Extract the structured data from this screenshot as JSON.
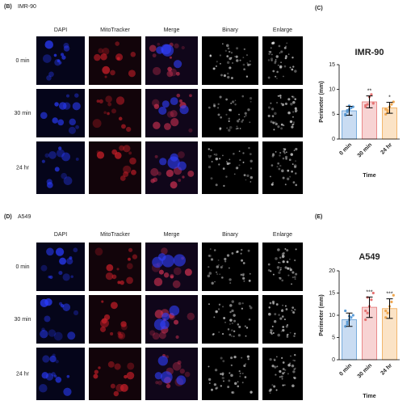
{
  "panels": [
    {
      "label": "(B)",
      "cell_line": "IMR-90",
      "columns": [
        "DAPI",
        "MitoTracker",
        "Merge",
        "Binary",
        "Enlarge"
      ],
      "rows": [
        "0 min",
        "30 min",
        "24 hr"
      ]
    },
    {
      "label": "(D)",
      "cell_line": "A549",
      "columns": [
        "DAPI",
        "MitoTracker",
        "Merge",
        "Binary",
        "Enlarge"
      ],
      "rows": [
        "0 min",
        "30 min",
        "24 hr"
      ]
    }
  ],
  "chart_data": [
    {
      "type": "bar",
      "panel_label": "(C)",
      "title": "IMR-90",
      "x_label": "Time",
      "y_label": "Perimeter (mm)",
      "categories": [
        "0 min",
        "30 min",
        "24 hr"
      ],
      "values": [
        5.7,
        7.5,
        6.3
      ],
      "errors": [
        0.9,
        1.2,
        1.1
      ],
      "annotations": [
        null,
        "**",
        "*"
      ],
      "points": [
        [
          5.0,
          5.5,
          6.0,
          6.3,
          6.5,
          4.8,
          5.8,
          6.7
        ],
        [
          6.5,
          7.0,
          8.5,
          9.0,
          7.2,
          6.8
        ],
        [
          5.0,
          5.5,
          6.5,
          7.0,
          7.5,
          6.0,
          5.8
        ]
      ],
      "colors": [
        "#c9dcf2",
        "#f7d3d3",
        "#fbe3c6"
      ],
      "point_colors": [
        "#5b9bd5",
        "#e57373",
        "#f0a750"
      ],
      "ylim": [
        0,
        15
      ],
      "yticks": [
        0,
        5,
        10,
        15
      ]
    },
    {
      "type": "bar",
      "panel_label": "(E)",
      "title": "A549",
      "x_label": "Time",
      "y_label": "Perimeter (mm)",
      "categories": [
        "0 min",
        "30 min",
        "24 hr"
      ],
      "values": [
        9,
        11.8,
        11.5
      ],
      "errors": [
        1.5,
        2.3,
        2.2
      ],
      "annotations": [
        null,
        "***",
        "***"
      ],
      "points": [
        [
          7.5,
          8.5,
          9.0,
          9.5,
          10.0,
          11.0,
          8.0,
          9.8
        ],
        [
          9.0,
          10.5,
          12.0,
          13.5,
          15.0,
          11.0,
          14.0
        ],
        [
          9.5,
          10.5,
          12.0,
          13.0,
          14.5,
          11.0
        ]
      ],
      "colors": [
        "#c9dcf2",
        "#f7d3d3",
        "#fbe3c6"
      ],
      "point_colors": [
        "#5b9bd5",
        "#e57373",
        "#f0a750"
      ],
      "ylim": [
        0,
        20
      ],
      "yticks": [
        0,
        5,
        10,
        15,
        20
      ]
    }
  ]
}
